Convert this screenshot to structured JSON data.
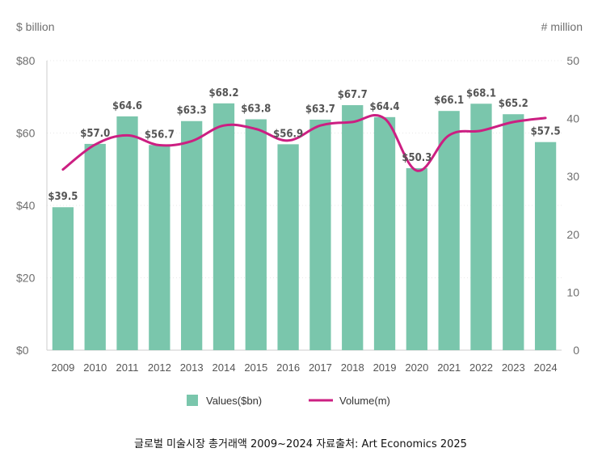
{
  "chart_data": {
    "type": "bar+line",
    "title": "",
    "caption": "글로벌 미술시장 총거래액 2009~2024 자료출처: Art Economics 2025",
    "categories": [
      "2009",
      "2010",
      "2011",
      "2012",
      "2013",
      "2014",
      "2015",
      "2016",
      "2017",
      "2018",
      "2019",
      "2020",
      "2021",
      "2022",
      "2023",
      "2024"
    ],
    "series": [
      {
        "name": "Values($bn)",
        "kind": "bar",
        "axis": "left",
        "color": "#7ac6ac",
        "values": [
          39.5,
          57.0,
          64.6,
          56.7,
          63.3,
          68.2,
          63.8,
          56.9,
          63.7,
          67.7,
          64.4,
          50.3,
          66.1,
          68.1,
          65.2,
          57.5
        ],
        "labels": [
          "$39.5",
          "$57.0",
          "$64.6",
          "$56.7",
          "$63.3",
          "$68.2",
          "$63.8",
          "$56.9",
          "$63.7",
          "$67.7",
          "$64.4",
          "$50.3",
          "$66.1",
          "$68.1",
          "$65.2",
          "$57.5"
        ]
      },
      {
        "name": "Volume(m)",
        "kind": "line",
        "axis": "right",
        "color": "#cc1f82",
        "values": [
          31.2,
          35.5,
          37.1,
          35.4,
          36.1,
          38.8,
          38.2,
          36.2,
          38.8,
          39.4,
          40.0,
          31.0,
          37.1,
          37.9,
          39.4,
          40.1
        ]
      }
    ],
    "y_left": {
      "label": "$ billion",
      "min": 0,
      "max": 80,
      "ticks": [
        0,
        20,
        40,
        60,
        80
      ],
      "tick_labels": [
        "$0",
        "$20",
        "$40",
        "$60",
        "$80"
      ]
    },
    "y_right": {
      "label": "# million",
      "min": 0,
      "max": 50,
      "ticks": [
        0,
        10,
        20,
        30,
        40,
        50
      ],
      "tick_labels": [
        "0",
        "10",
        "20",
        "30",
        "40",
        "50"
      ]
    },
    "legend": {
      "placement": "bottom-center",
      "items": [
        "Values($bn)",
        "Volume(m)"
      ]
    },
    "grid": true
  }
}
